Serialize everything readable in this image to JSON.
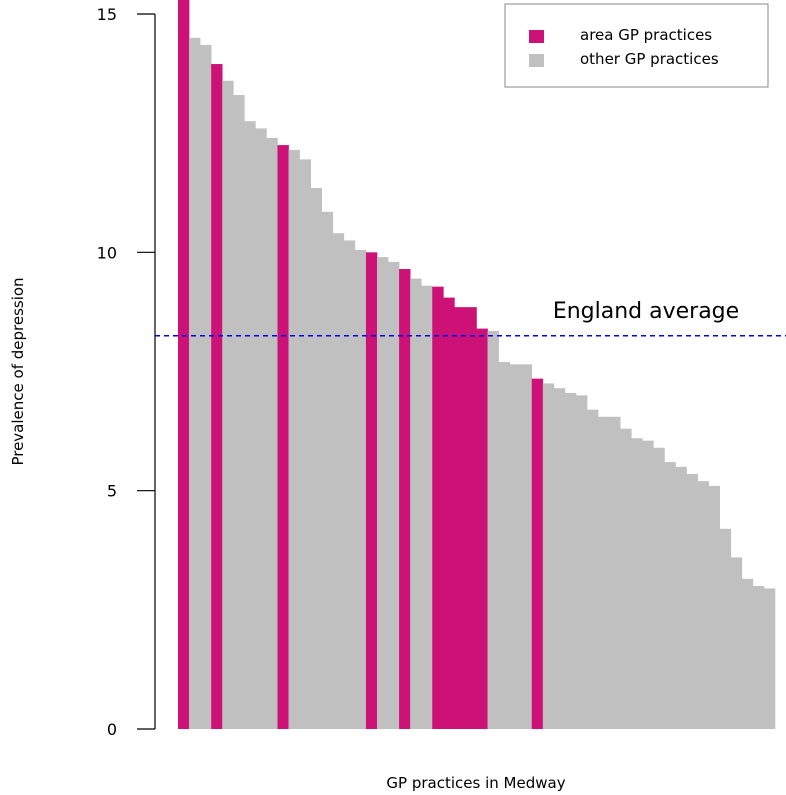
{
  "chart_data": {
    "type": "bar",
    "xlabel": "GP practices in Medway",
    "ylabel": "Prevalence of depression",
    "ylim": [
      0,
      15
    ],
    "yticks": [
      0,
      5,
      10,
      15
    ],
    "grid": false,
    "legend_position": "top-right",
    "reference_line": {
      "label": "England average",
      "value": 8.25,
      "color": "#0000ee",
      "style": "dashed"
    },
    "series": [
      {
        "name": "area GP practices",
        "color": "#cc1177"
      },
      {
        "name": "other GP practices",
        "color": "#c0c0c0"
      }
    ],
    "values": [
      15.3,
      14.5,
      14.35,
      13.95,
      13.6,
      13.3,
      12.75,
      12.6,
      12.4,
      12.25,
      12.15,
      11.95,
      11.35,
      10.85,
      10.4,
      10.25,
      10.05,
      10.0,
      9.9,
      9.8,
      9.65,
      9.45,
      9.3,
      9.28,
      9.05,
      8.85,
      8.85,
      8.4,
      8.35,
      7.7,
      7.65,
      7.65,
      7.35,
      7.25,
      7.15,
      7.05,
      7.0,
      6.7,
      6.55,
      6.55,
      6.3,
      6.1,
      6.05,
      5.9,
      5.6,
      5.5,
      5.35,
      5.2,
      5.1,
      4.2,
      3.6,
      3.15,
      3.0,
      2.95
    ],
    "highlighted": [
      0,
      3,
      9,
      17,
      20,
      23,
      24,
      25,
      26,
      27,
      32
    ]
  }
}
